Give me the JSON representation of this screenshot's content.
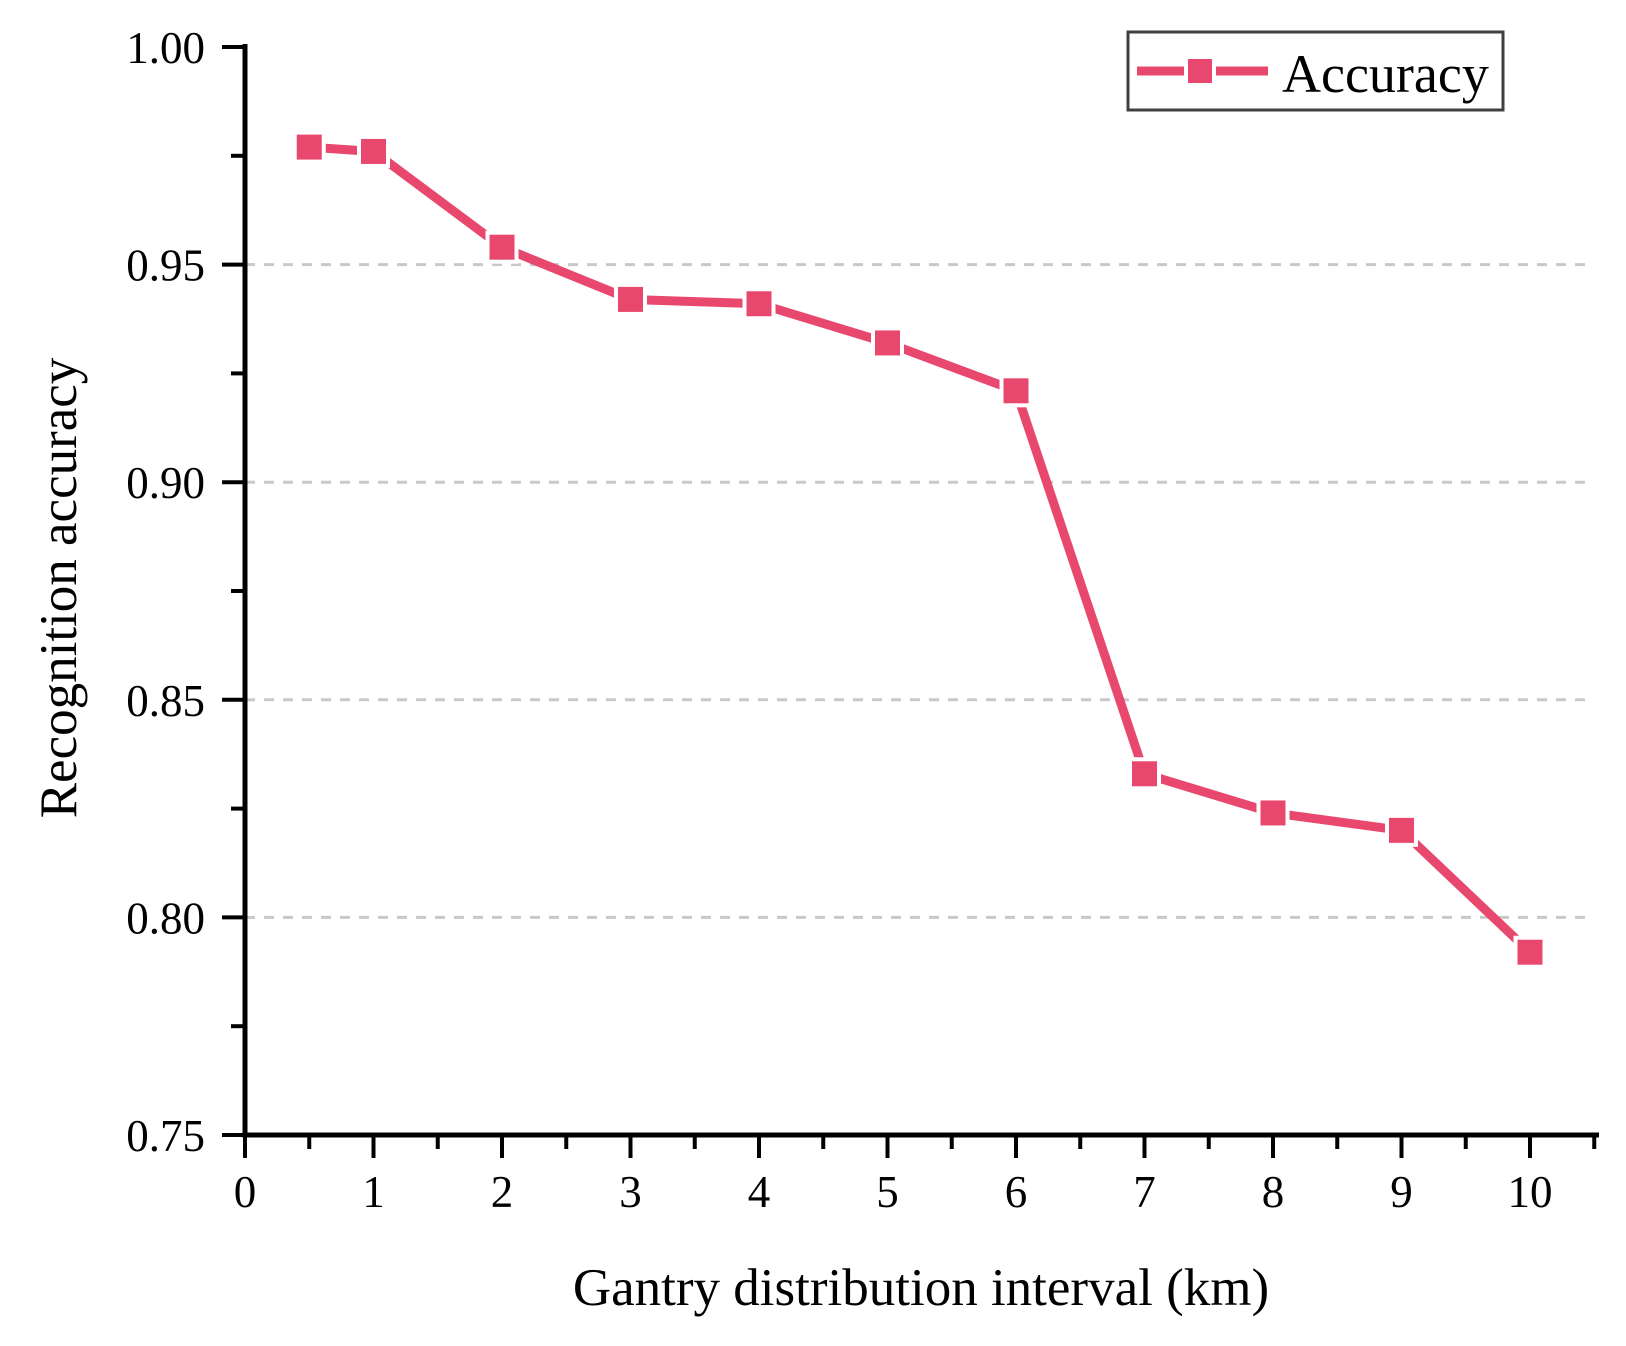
{
  "figure": {
    "background": "#ffffff",
    "accent_color": "#e8486e",
    "grid_color": "#c9c9c9",
    "axis_color": "#000000",
    "legend": {
      "label": "Accuracy",
      "border_color": "#404040",
      "position": "top-right"
    },
    "x_axis": {
      "title": "Gantry distribution interval (km)",
      "major_tick_values": [
        0,
        1,
        2,
        3,
        4,
        5,
        6,
        7,
        8,
        9,
        10
      ],
      "major_tick_labels": [
        "0",
        "1",
        "2",
        "3",
        "4",
        "5",
        "6",
        "7",
        "8",
        "9",
        "10"
      ],
      "minor_tick_values": [
        0.5,
        1.5,
        2.5,
        3.5,
        4.5,
        5.5,
        6.5,
        7.5,
        8.5,
        9.5,
        10.5
      ]
    },
    "y_axis": {
      "title": "Recognition accuracy",
      "major_tick_values": [
        0.75,
        0.8,
        0.85,
        0.9,
        0.95,
        1.0
      ],
      "major_tick_labels": [
        "0.75",
        "0.80",
        "0.85",
        "0.90",
        "0.95",
        "1.00"
      ],
      "minor_tick_values": [
        0.775,
        0.825,
        0.875,
        0.925,
        0.975
      ],
      "gridline_values": [
        0.8,
        0.85,
        0.9,
        0.95
      ]
    }
  },
  "chart_data": {
    "type": "line",
    "title": "",
    "xlabel": "Gantry distribution interval (km)",
    "ylabel": "Recognition accuracy",
    "xlim": [
      0,
      10.54
    ],
    "ylim": [
      0.75,
      1.0
    ],
    "grid": "horizontal-dashed",
    "legend_position": "top-right",
    "marker": "square",
    "series": [
      {
        "name": "Accuracy",
        "x": [
          0.5,
          1,
          2,
          3,
          4,
          5,
          6,
          7,
          8,
          9,
          10
        ],
        "y": [
          0.977,
          0.976,
          0.954,
          0.942,
          0.941,
          0.932,
          0.921,
          0.833,
          0.824,
          0.82,
          0.792
        ]
      }
    ]
  }
}
